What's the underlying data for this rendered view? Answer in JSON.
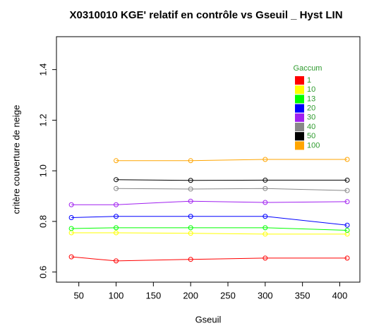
{
  "chart_data": {
    "type": "line",
    "title": "X0310010 KGE' relatif en contrôle vs Gseuil _  Hyst LIN",
    "x_label": "Gseuil",
    "y_label": "critère couverture de neige",
    "x": [
      40,
      100,
      200,
      300,
      410
    ],
    "xlim": [
      20,
      427
    ],
    "xticks": [
      50,
      100,
      150,
      200,
      250,
      300,
      350,
      400
    ],
    "ylim": [
      0.56,
      1.53
    ],
    "yticks": [
      0.6,
      0.8,
      {
        "value": 1,
        "label": "1.0"
      },
      1.2,
      1.4
    ],
    "legend_title": "Gaccum",
    "legend_position": "top-right",
    "legend_text_color": "#2e9b2e",
    "series": [
      {
        "name": "1",
        "color": "#ff0000",
        "values": [
          0.66,
          0.644,
          0.65,
          0.655,
          0.655
        ]
      },
      {
        "name": "10",
        "color": "#ffff00",
        "values": [
          0.755,
          0.755,
          0.753,
          0.75,
          0.75
        ]
      },
      {
        "name": "13",
        "color": "#00ff00",
        "values": [
          0.772,
          0.775,
          0.775,
          0.775,
          0.765
        ]
      },
      {
        "name": "20",
        "color": "#0000ff",
        "values": [
          0.815,
          0.82,
          0.82,
          0.82,
          0.785
        ]
      },
      {
        "name": "30",
        "color": "#a020f0",
        "values": [
          0.866,
          0.866,
          0.88,
          0.875,
          0.878
        ]
      },
      {
        "name": "40",
        "color": "#888888",
        "values": [
          null,
          0.93,
          0.928,
          0.93,
          0.922
        ]
      },
      {
        "name": "50",
        "color": "#000000",
        "values": [
          null,
          0.965,
          0.962,
          0.963,
          0.963
        ]
      },
      {
        "name": "100",
        "color": "#ffa500",
        "values": [
          null,
          1.04,
          1.04,
          1.045,
          1.045
        ]
      }
    ]
  }
}
